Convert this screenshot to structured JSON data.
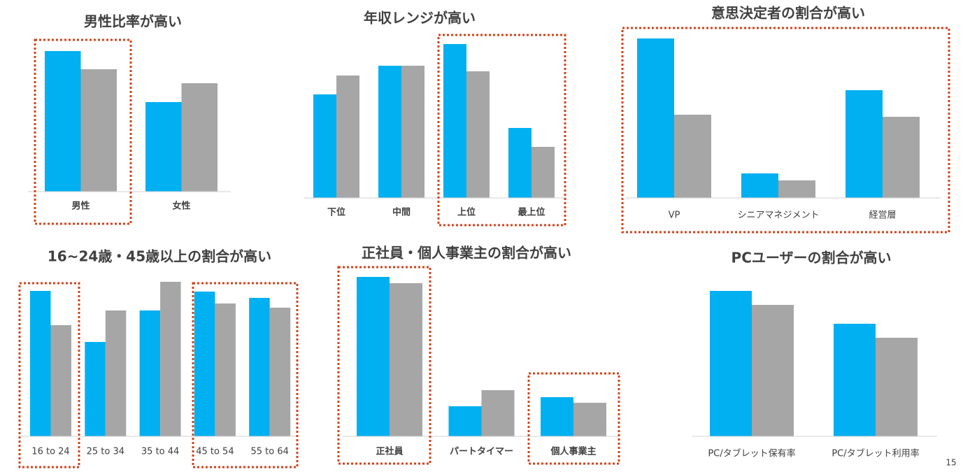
{
  "page_number": "15",
  "chart_data": [
    {
      "type": "bar",
      "title": "男性比率が高い",
      "categories": [
        "男性",
        "女性"
      ],
      "series": [
        {
          "color": "#00b0f0",
          "values": [
            201,
            128
          ]
        },
        {
          "color": "#a6a6a6",
          "values": [
            175,
            155
          ]
        }
      ],
      "ylim": [
        0,
        240
      ]
    },
    {
      "type": "bar",
      "title": "年収レンジが高い",
      "categories": [
        "下位",
        "中間",
        "上位",
        "最上位"
      ],
      "series": [
        {
          "color": "#00b0f0",
          "values": [
            148,
            189,
            220,
            100
          ]
        },
        {
          "color": "#a6a6a6",
          "values": [
            175,
            189,
            181,
            73
          ]
        }
      ],
      "ylim": [
        0,
        240
      ]
    },
    {
      "type": "bar",
      "title": "意思決定者の割合が高い",
      "categories": [
        "VP",
        "シニアマネジメント",
        "経営層"
      ],
      "series": [
        {
          "color": "#00b0f0",
          "values": [
            228,
            35,
            154
          ]
        },
        {
          "color": "#a6a6a6",
          "values": [
            119,
            25,
            116
          ]
        }
      ],
      "ylim": [
        0,
        240
      ]
    },
    {
      "type": "bar",
      "title": "16~24歳・45歳以上の割合が高い",
      "categories": [
        "16 to 24",
        "25 to 34",
        "35 to 44",
        "45 to 54",
        "55 to 64"
      ],
      "series": [
        {
          "color": "#00b0f0",
          "values": [
            208,
            135,
            180,
            207,
            198
          ]
        },
        {
          "color": "#a6a6a6",
          "values": [
            159,
            180,
            221,
            190,
            184
          ]
        }
      ],
      "ylim": [
        0,
        240
      ]
    },
    {
      "type": "bar",
      "title": "正社員・個人事業主の割合が高い",
      "categories": [
        "正社員",
        "パートタイマー",
        "個人事業主"
      ],
      "series": [
        {
          "color": "#00b0f0",
          "values": [
            228,
            43,
            56
          ]
        },
        {
          "color": "#a6a6a6",
          "values": [
            219,
            66,
            48
          ]
        }
      ],
      "ylim": [
        0,
        240
      ]
    },
    {
      "type": "bar",
      "title": "PCユーザーの割合が高い",
      "categories": [
        "PC/タブレット保有率",
        "PC/タブレット利用率"
      ],
      "series": [
        {
          "color": "#00b0f0",
          "values": [
            208,
            161
          ]
        },
        {
          "color": "#a6a6a6",
          "values": [
            188,
            141
          ]
        }
      ],
      "ylim": [
        0,
        240
      ]
    }
  ]
}
